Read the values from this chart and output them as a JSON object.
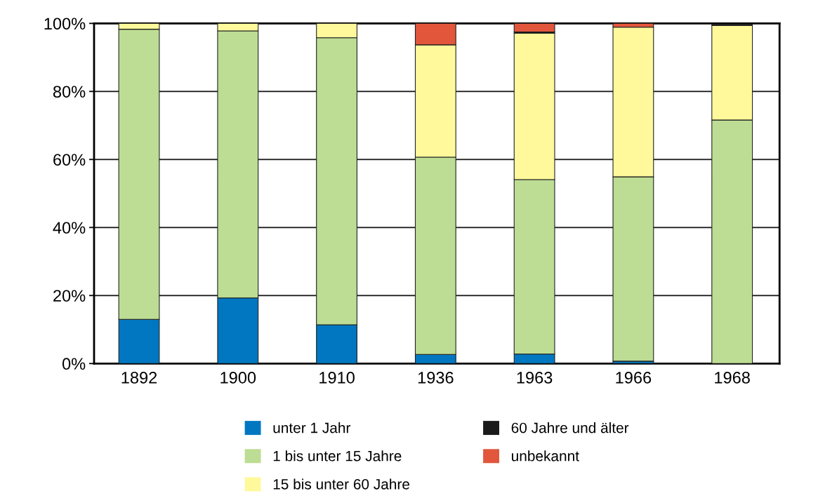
{
  "chart_data": {
    "type": "bar",
    "stacked": true,
    "categories": [
      "1892",
      "1900",
      "1910",
      "1936",
      "1963",
      "1966",
      "1968"
    ],
    "series": [
      {
        "name": "unter 1 Jahr",
        "color": "#0077c0",
        "values": [
          13,
          19.3,
          11.4,
          2.7,
          2.8,
          0.7,
          0
        ]
      },
      {
        "name": "1 bis unter 15 Jahre",
        "color": "#bcdd93",
        "values": [
          85.3,
          78.5,
          84.4,
          58,
          51.3,
          54.2,
          71.6
        ]
      },
      {
        "name": "15 bis unter 60 Jahre",
        "color": "#fff99b",
        "values": [
          1.7,
          2.2,
          4.2,
          33,
          43,
          44,
          27.8
        ]
      },
      {
        "name": "60 Jahre und älter",
        "color": "#1a1a1a",
        "values": [
          0,
          0,
          0,
          0,
          0.4,
          0,
          0.4
        ]
      },
      {
        "name": "unbekannt",
        "color": "#e2563c",
        "values": [
          0,
          0,
          0,
          6.3,
          2.5,
          1.1,
          0
        ]
      }
    ],
    "ylim": [
      0,
      100
    ],
    "yticks": [
      {
        "value": 0,
        "label": "0%"
      },
      {
        "value": 20,
        "label": "20%"
      },
      {
        "value": 40,
        "label": "40%"
      },
      {
        "value": 60,
        "label": "60%"
      },
      {
        "value": 80,
        "label": "80%"
      },
      {
        "value": 100,
        "label": "100%"
      }
    ],
    "grid": "y",
    "legend": "bottom"
  }
}
